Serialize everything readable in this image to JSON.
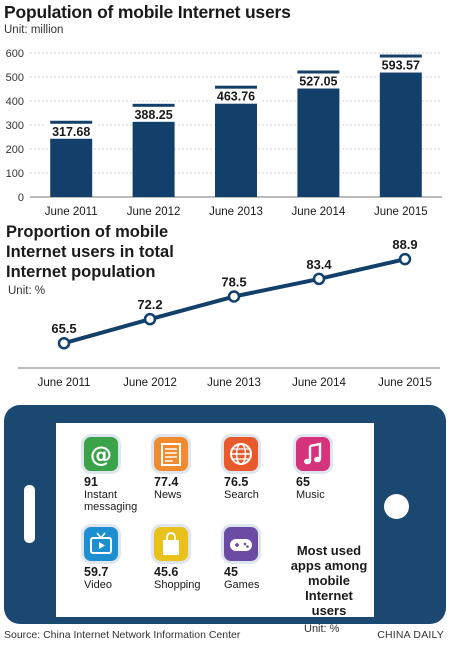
{
  "chart_data": [
    {
      "type": "bar",
      "title": "Population of mobile Internet users",
      "unit": "Unit: million",
      "categories": [
        "June 2011",
        "June 2012",
        "June 2013",
        "June 2014",
        "June 2015"
      ],
      "values": [
        317.68,
        388.25,
        463.76,
        527.05,
        593.57
      ],
      "value_labels": [
        "317.68",
        "388.25",
        "463.76",
        "527.05",
        "593.57"
      ],
      "ylim": [
        0,
        600
      ],
      "yticks": [
        0,
        100,
        200,
        300,
        400,
        500,
        600
      ],
      "grid": true,
      "color": "#13406a"
    },
    {
      "type": "line",
      "title_lines": [
        "Proportion of mobile",
        "Internet users in total",
        "Internet population"
      ],
      "unit": "Unit: %",
      "categories": [
        "June 2011",
        "June 2012",
        "June 2013",
        "June 2014",
        "June 2015"
      ],
      "values": [
        65.5,
        72.2,
        78.5,
        83.4,
        88.9
      ],
      "value_labels": [
        "65.5",
        "72.2",
        "78.5",
        "83.4",
        "88.9"
      ],
      "color": "#13406a"
    },
    {
      "type": "table",
      "title_lines": [
        "Most used",
        "apps among",
        "mobile",
        "Internet",
        "users"
      ],
      "unit": "Unit: %",
      "items": [
        {
          "value": "91",
          "label_lines": [
            "Instant",
            "messaging"
          ],
          "icon": "at-sign-icon",
          "color": "#3aa34a"
        },
        {
          "value": "77.4",
          "label_lines": [
            "News"
          ],
          "icon": "newspaper-icon",
          "color": "#f28a2e"
        },
        {
          "value": "76.5",
          "label_lines": [
            "Search"
          ],
          "icon": "globe-icon",
          "color": "#e85a2c"
        },
        {
          "value": "65",
          "label_lines": [
            "Music"
          ],
          "icon": "music-note-icon",
          "color": "#d6337c"
        },
        {
          "value": "59.7",
          "label_lines": [
            "Video"
          ],
          "icon": "tv-icon",
          "color": "#1d8fd1"
        },
        {
          "value": "45.6",
          "label_lines": [
            "Shopping"
          ],
          "icon": "shopping-bag-icon",
          "color": "#e8c21a"
        },
        {
          "value": "45",
          "label_lines": [
            "Games"
          ],
          "icon": "gamepad-icon",
          "color": "#6b4ba3"
        }
      ]
    }
  ],
  "footer": {
    "source": "Source: China Internet Network Information Center",
    "brand": "CHINA DAILY"
  }
}
